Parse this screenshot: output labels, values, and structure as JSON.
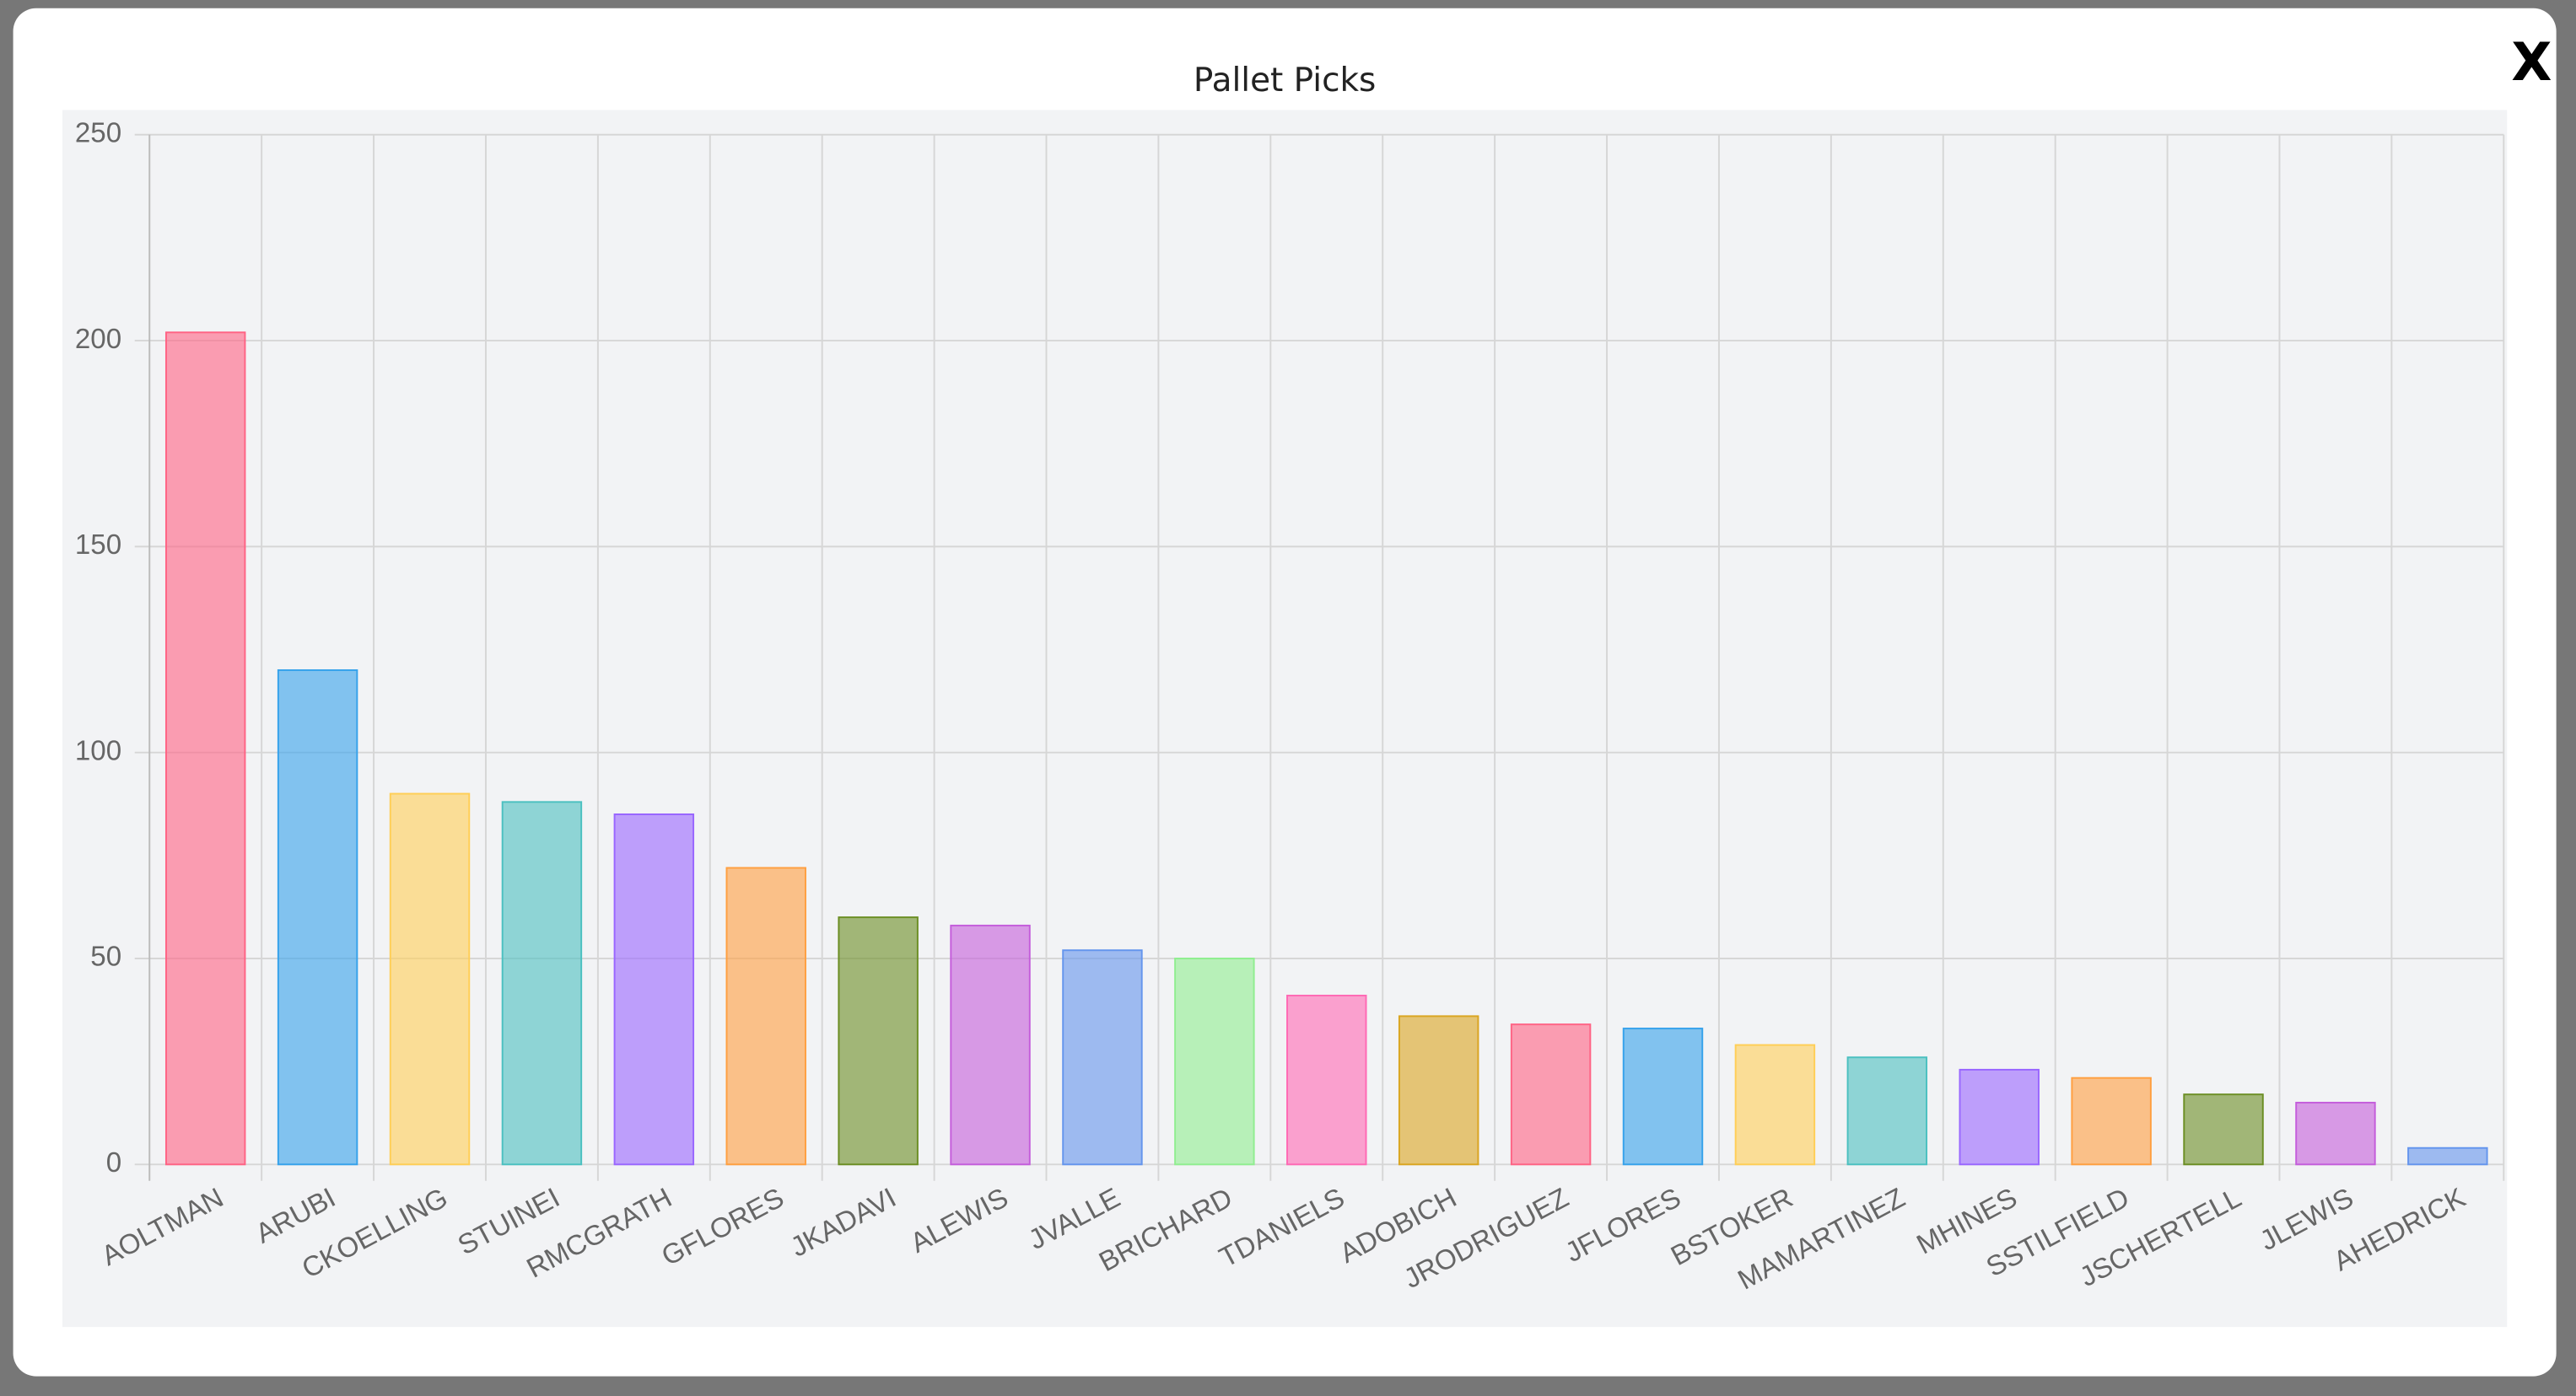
{
  "close_button": "X",
  "chart_data": {
    "type": "bar",
    "title": "Pallet Picks",
    "categories": [
      "AOLTMAN",
      "ARUBI",
      "CKOELLING",
      "STUINEI",
      "RMCGRATH",
      "GFLORES",
      "JKADAVI",
      "ALEWIS",
      "JVALLE",
      "BRICHARD",
      "TDANIELS",
      "ADOBICH",
      "JRODRIGUEZ",
      "JFLORES",
      "BSTOKER",
      "MAMARTINEZ",
      "MHINES",
      "SSTILFIELD",
      "JSCHERTELL",
      "JLEWIS",
      "AHEDRICK"
    ],
    "values": [
      202,
      120,
      90,
      88,
      85,
      72,
      60,
      58,
      52,
      50,
      41,
      36,
      34,
      33,
      29,
      26,
      23,
      21,
      17,
      15,
      4
    ],
    "colors": [
      "#ff6384",
      "#36a2eb",
      "#ffce56",
      "#4bc0c0",
      "#9966ff",
      "#ff9f40",
      "#6b8e23",
      "#c45ddb",
      "#6495ed",
      "#90ee90",
      "#ff69b4",
      "#daa520",
      "#ff6384",
      "#36a2eb",
      "#ffce56",
      "#4bc0c0",
      "#9966ff",
      "#ff9f40",
      "#6b8e23",
      "#c45ddb",
      "#6495ed"
    ],
    "ylim": [
      0,
      250
    ],
    "yticks": [
      0,
      50,
      100,
      150,
      200,
      250
    ],
    "grid": true
  }
}
